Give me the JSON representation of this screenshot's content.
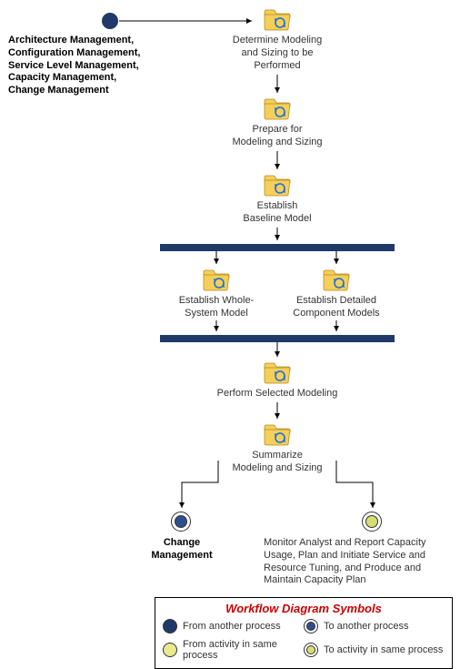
{
  "type": "flowchart",
  "colors": {
    "folder_fill": "#f6cf5a",
    "folder_stroke": "#b58a1e",
    "refresh_arrow": "#1e6fd6",
    "sync_bar": "#1f3a68",
    "start_circle": "#1f3a68",
    "to_another_fill": "#2e4f8f",
    "to_same_fill": "#d8dd71",
    "from_same_fill": "#e7ea8f",
    "legend_title": "#cc0000",
    "arrow": "#000000",
    "text": "#333333"
  },
  "start": {
    "label": "Architecture Management,\nConfiguration Management,\nService Level Management,\nCapacity Management,\nChange Management"
  },
  "nodes": {
    "n1": "Determine Modeling\nand Sizing to be\nPerformed",
    "n2": "Prepare for\nModeling and Sizing",
    "n3": "Establish\nBaseline Model",
    "n4": "Establish Whole-\nSystem Model",
    "n5": "Establish Detailed\nComponent Models",
    "n6": "Perform Selected Modeling",
    "n7": "Summarize\nModeling and Sizing"
  },
  "end_left": "Change\nManagement",
  "end_right": "Monitor Analyst and Report Capacity\nUsage, Plan and Initiate Service and\nResource Tuning, and Produce and\nMaintain Capacity Plan",
  "legend": {
    "title": "Workflow Diagram Symbols",
    "items": {
      "from_another": "From another process",
      "to_another": "To another process",
      "from_same": "From activity in same process",
      "to_same": "To activity in same process"
    }
  }
}
